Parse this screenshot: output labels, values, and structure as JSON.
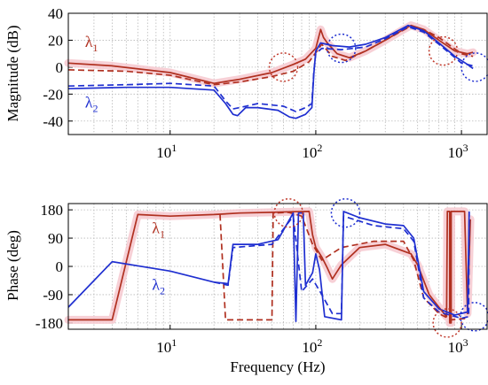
{
  "chart_data": [
    {
      "type": "line",
      "ylabel": "Magnitude (dB)",
      "xscale": "log",
      "xlim": [
        2,
        1500
      ],
      "ylim": [
        -50,
        40
      ],
      "yticks": [
        -40,
        -20,
        0,
        20,
        40
      ],
      "xtick_labels": [
        {
          "v": 10,
          "base": "10",
          "exp": "1"
        },
        {
          "v": 100,
          "base": "10",
          "exp": "2"
        },
        {
          "v": 1000,
          "base": "10",
          "exp": "3"
        }
      ],
      "grid": true,
      "colors": {
        "lambda1": "#b03020",
        "lambda2": "#1f2fd0",
        "highlight": "#f6c8cf"
      },
      "labels": [
        {
          "base": "λ",
          "sub": "1",
          "x": 2.6,
          "y": 15,
          "color": "#b03020"
        },
        {
          "base": "λ",
          "sub": "2",
          "x": 2.6,
          "y": -30,
          "color": "#1f2fd0"
        }
      ],
      "circles": [
        {
          "x": 60,
          "y": 0,
          "color": "#c0392b"
        },
        {
          "x": 150,
          "y": 14,
          "color": "#1f2fd0"
        },
        {
          "x": 750,
          "y": 12,
          "color": "#c0392b"
        },
        {
          "x": 1250,
          "y": 0,
          "color": "#1f2fd0"
        }
      ],
      "series": [
        {
          "name": "λ1",
          "color": "#b03020",
          "dash": false,
          "points": [
            [
              2,
              3
            ],
            [
              4,
              1
            ],
            [
              10,
              -4
            ],
            [
              20,
              -12
            ],
            [
              30,
              -9
            ],
            [
              50,
              -4
            ],
            [
              70,
              2
            ],
            [
              85,
              6
            ],
            [
              100,
              14
            ],
            [
              108,
              28
            ],
            [
              113,
              22
            ],
            [
              120,
              18
            ],
            [
              140,
              10
            ],
            [
              170,
              7
            ],
            [
              220,
              12
            ],
            [
              300,
              20
            ],
            [
              400,
              28
            ],
            [
              450,
              31
            ],
            [
              550,
              28
            ],
            [
              700,
              20
            ],
            [
              900,
              12
            ],
            [
              1100,
              10
            ],
            [
              1200,
              11
            ]
          ]
        },
        {
          "name": "λ1",
          "color": "#b03020",
          "dash": true,
          "points": [
            [
              2,
              -2
            ],
            [
              5,
              -3
            ],
            [
              10,
              -6
            ],
            [
              20,
              -13
            ],
            [
              30,
              -11
            ],
            [
              50,
              -7
            ],
            [
              70,
              -3
            ],
            [
              90,
              4
            ],
            [
              105,
              14
            ],
            [
              110,
              17
            ],
            [
              130,
              8
            ],
            [
              160,
              5
            ],
            [
              220,
              12
            ],
            [
              300,
              20
            ],
            [
              440,
              30
            ],
            [
              550,
              28
            ],
            [
              700,
              22
            ],
            [
              1000,
              10
            ],
            [
              1200,
              8
            ]
          ]
        },
        {
          "name": "λ2",
          "color": "#1f2fd0",
          "dash": false,
          "points": [
            [
              2,
              -16
            ],
            [
              5,
              -15
            ],
            [
              10,
              -15
            ],
            [
              20,
              -17
            ],
            [
              24,
              -27
            ],
            [
              27,
              -35
            ],
            [
              29,
              -36
            ],
            [
              33,
              -30
            ],
            [
              40,
              -30
            ],
            [
              55,
              -32
            ],
            [
              66,
              -37
            ],
            [
              73,
              -38
            ],
            [
              85,
              -35
            ],
            [
              94,
              -30
            ],
            [
              97,
              -5
            ],
            [
              100,
              12
            ],
            [
              108,
              18
            ],
            [
              130,
              16
            ],
            [
              170,
              15
            ],
            [
              220,
              17
            ],
            [
              300,
              22
            ],
            [
              430,
              31
            ],
            [
              550,
              27
            ],
            [
              700,
              18
            ],
            [
              900,
              8
            ],
            [
              1100,
              2
            ],
            [
              1200,
              -1
            ]
          ]
        },
        {
          "name": "λ2",
          "color": "#1f2fd0",
          "dash": true,
          "points": [
            [
              2,
              -14
            ],
            [
              5,
              -13
            ],
            [
              10,
              -12
            ],
            [
              20,
              -14
            ],
            [
              24,
              -25
            ],
            [
              27,
              -31
            ],
            [
              30,
              -30
            ],
            [
              40,
              -27
            ],
            [
              60,
              -29
            ],
            [
              73,
              -33
            ],
            [
              85,
              -30
            ],
            [
              94,
              -27
            ],
            [
              97,
              -3
            ],
            [
              100,
              10
            ],
            [
              110,
              14
            ],
            [
              150,
              13
            ],
            [
              220,
              15
            ],
            [
              300,
              21
            ],
            [
              430,
              30
            ],
            [
              550,
              26
            ],
            [
              700,
              17
            ],
            [
              1000,
              3
            ],
            [
              1200,
              1
            ]
          ]
        }
      ]
    },
    {
      "type": "line",
      "ylabel": "Phase (deg)",
      "xlabel": "Frequency (Hz)",
      "xscale": "log",
      "xlim": [
        2,
        1500
      ],
      "ylim": [
        -200,
        200
      ],
      "yticks": [
        -180,
        -90,
        0,
        90,
        180
      ],
      "xtick_labels": [
        {
          "v": 10,
          "base": "10",
          "exp": "1"
        },
        {
          "v": 100,
          "base": "10",
          "exp": "2"
        },
        {
          "v": 1000,
          "base": "10",
          "exp": "3"
        }
      ],
      "grid": true,
      "colors": {
        "lambda1": "#b03020",
        "lambda2": "#1f2fd0",
        "highlight": "#f6c8cf"
      },
      "labels": [
        {
          "base": "λ",
          "sub": "1",
          "x": 7.5,
          "y": 105,
          "color": "#b03020"
        },
        {
          "base": "λ",
          "sub": "2",
          "x": 7.5,
          "y": -75,
          "color": "#1f2fd0"
        }
      ],
      "circles": [
        {
          "x": 65,
          "y": 170,
          "color": "#c0392b"
        },
        {
          "x": 160,
          "y": 170,
          "color": "#1f2fd0"
        },
        {
          "x": 800,
          "y": -180,
          "color": "#c0392b"
        },
        {
          "x": 1230,
          "y": -160,
          "color": "#1f2fd0"
        }
      ],
      "series": [
        {
          "name": "λ1",
          "color": "#b03020",
          "dash": false,
          "points": [
            [
              2,
              -170
            ],
            [
              4,
              -170
            ],
            [
              6,
              165
            ],
            [
              10,
              160
            ],
            [
              20,
              165
            ],
            [
              30,
              170
            ],
            [
              50,
              172
            ],
            [
              70,
              174
            ],
            [
              90,
              175
            ],
            [
              95,
              100
            ],
            [
              100,
              60
            ],
            [
              110,
              30
            ],
            [
              120,
              -5
            ],
            [
              130,
              -40
            ],
            [
              150,
              5
            ],
            [
              200,
              60
            ],
            [
              300,
              70
            ],
            [
              450,
              40
            ],
            [
              500,
              5
            ],
            [
              600,
              -90
            ],
            [
              700,
              -130
            ],
            [
              790,
              -160
            ],
            [
              800,
              175
            ],
            [
              830,
              175
            ],
            [
              830,
              -180
            ],
            [
              850,
              -180
            ],
            [
              850,
              175
            ],
            [
              1050,
              175
            ],
            [
              1100,
              -150
            ],
            [
              1150,
              150
            ]
          ]
        },
        {
          "name": "λ1",
          "color": "#b03020",
          "dash": true,
          "points": [
            [
              22,
              165
            ],
            [
              24,
              -170
            ],
            [
              50,
              -170
            ],
            [
              51,
              170
            ],
            [
              65,
              172
            ],
            [
              80,
              160
            ],
            [
              95,
              70
            ],
            [
              110,
              20
            ],
            [
              150,
              60
            ],
            [
              250,
              80
            ],
            [
              400,
              80
            ],
            [
              470,
              20
            ],
            [
              550,
              -100
            ],
            [
              700,
              -150
            ],
            [
              850,
              -170
            ],
            [
              1100,
              -165
            ]
          ]
        },
        {
          "name": "λ2",
          "color": "#1f2fd0",
          "dash": false,
          "points": [
            [
              2,
              -130
            ],
            [
              4,
              15
            ],
            [
              10,
              -15
            ],
            [
              20,
              -50
            ],
            [
              25,
              -55
            ],
            [
              27,
              70
            ],
            [
              40,
              70
            ],
            [
              55,
              85
            ],
            [
              70,
              170
            ],
            [
              73,
              -175
            ],
            [
              76,
              170
            ],
            [
              82,
              170
            ],
            [
              85,
              -60
            ],
            [
              95,
              -20
            ],
            [
              100,
              40
            ],
            [
              106,
              -10
            ],
            [
              115,
              -160
            ],
            [
              150,
              -170
            ],
            [
              155,
              175
            ],
            [
              200,
              155
            ],
            [
              300,
              135
            ],
            [
              400,
              130
            ],
            [
              470,
              90
            ],
            [
              550,
              -80
            ],
            [
              700,
              -135
            ],
            [
              900,
              -155
            ],
            [
              1100,
              -145
            ],
            [
              1130,
              175
            ]
          ]
        },
        {
          "name": "λ2",
          "color": "#1f2fd0",
          "dash": true,
          "points": [
            [
              20,
              -50
            ],
            [
              25,
              -60
            ],
            [
              27,
              60
            ],
            [
              50,
              70
            ],
            [
              70,
              160
            ],
            [
              80,
              -80
            ],
            [
              95,
              -40
            ],
            [
              110,
              -90
            ],
            [
              130,
              -150
            ],
            [
              150,
              -150
            ],
            [
              155,
              160
            ],
            [
              250,
              130
            ],
            [
              400,
              120
            ],
            [
              470,
              80
            ],
            [
              550,
              -100
            ],
            [
              700,
              -145
            ],
            [
              1000,
              -165
            ],
            [
              1120,
              -160
            ],
            [
              1130,
              170
            ]
          ]
        }
      ]
    }
  ]
}
